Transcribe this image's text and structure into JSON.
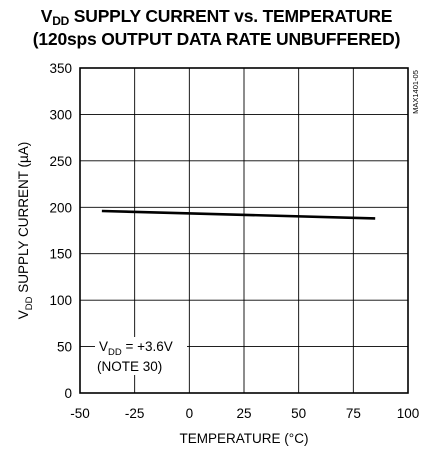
{
  "chart_data": {
    "type": "line",
    "title_line1_pre": "V",
    "title_line1_sub": "DD",
    "title_line1_post": " SUPPLY CURRENT vs. TEMPERATURE",
    "title_line2": "(120sps OUTPUT DATA RATE UNBUFFERED)",
    "xlabel": "TEMPERATURE (°C)",
    "ylabel_pre": "V",
    "ylabel_sub": "DD",
    "ylabel_post": " SUPPLY CURRENT (µA)",
    "xlim": [
      -50,
      100
    ],
    "ylim": [
      0,
      350
    ],
    "xticks": [
      -50,
      -25,
      0,
      25,
      50,
      75,
      100
    ],
    "yticks": [
      0,
      50,
      100,
      150,
      200,
      250,
      300,
      350
    ],
    "grid": true,
    "series": [
      {
        "x": [
          -40,
          85
        ],
        "y": [
          196,
          188
        ]
      }
    ],
    "annotation_line1_pre": "V",
    "annotation_line1_sub": "DD",
    "annotation_line1_post": " = +3.6V",
    "annotation_line2": "(NOTE 30)",
    "figure_code": "MAX1401-05"
  }
}
